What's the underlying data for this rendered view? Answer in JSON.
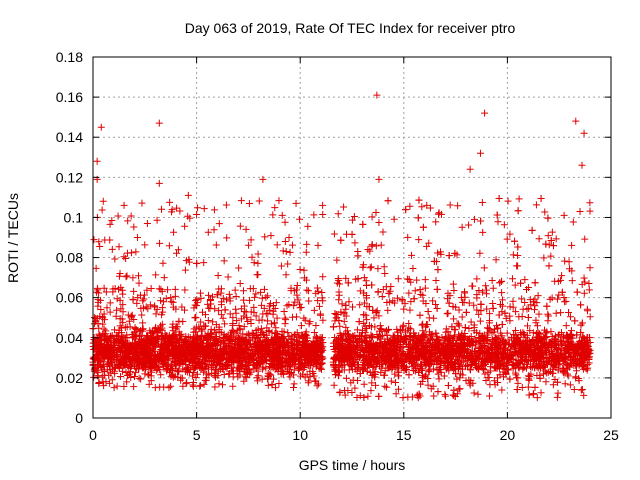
{
  "chart_data": {
    "type": "scatter",
    "title": "Day 063 of 2019, Rate Of TEC Index for receiver ptro",
    "xlabel": "GPS time / hours",
    "ylabel": "ROTI / TECUs",
    "xlim": [
      0,
      25
    ],
    "ylim": [
      0,
      0.18
    ],
    "xticks": [
      0,
      5,
      10,
      15,
      20,
      25
    ],
    "xtick_labels": [
      "0",
      "5",
      "10",
      "15",
      "20",
      "25"
    ],
    "yticks": [
      0,
      0.02,
      0.04,
      0.06,
      0.08,
      0.1,
      0.12,
      0.14,
      0.16,
      0.18
    ],
    "ytick_labels": [
      "0",
      "0.02",
      "0.04",
      "0.06",
      "0.08",
      "0.1",
      "0.12",
      "0.14",
      "0.16",
      "0.18"
    ],
    "grid": true,
    "marker": "+",
    "color": "#e00000",
    "series": [
      {
        "name": "ROTI",
        "notable_points": [
          {
            "x": 0.4,
            "y": 0.145
          },
          {
            "x": 3.2,
            "y": 0.147
          },
          {
            "x": 13.7,
            "y": 0.161
          },
          {
            "x": 18.9,
            "y": 0.152
          },
          {
            "x": 23.3,
            "y": 0.148
          },
          {
            "x": 23.7,
            "y": 0.142
          },
          {
            "x": 18.7,
            "y": 0.132
          },
          {
            "x": 0.2,
            "y": 0.128
          },
          {
            "x": 23.6,
            "y": 0.126
          },
          {
            "x": 0.2,
            "y": 0.119
          },
          {
            "x": 3.2,
            "y": 0.117
          },
          {
            "x": 8.2,
            "y": 0.119
          },
          {
            "x": 13.8,
            "y": 0.119
          },
          {
            "x": 18.2,
            "y": 0.124
          },
          {
            "x": 4.6,
            "y": 0.111
          },
          {
            "x": 9.8,
            "y": 0.107
          },
          {
            "x": 1.5,
            "y": 0.106
          }
        ],
        "segments": [
          {
            "x_start": 0.0,
            "x_end": 11.1,
            "y_base_min": 0.015,
            "y_base_max": 0.065,
            "y_spike_max": 0.12
          },
          {
            "x_start": 11.6,
            "y_base_min": 0.01,
            "x_end": 24.0,
            "y_base_max": 0.07,
            "y_spike_max": 0.12
          }
        ]
      }
    ]
  }
}
